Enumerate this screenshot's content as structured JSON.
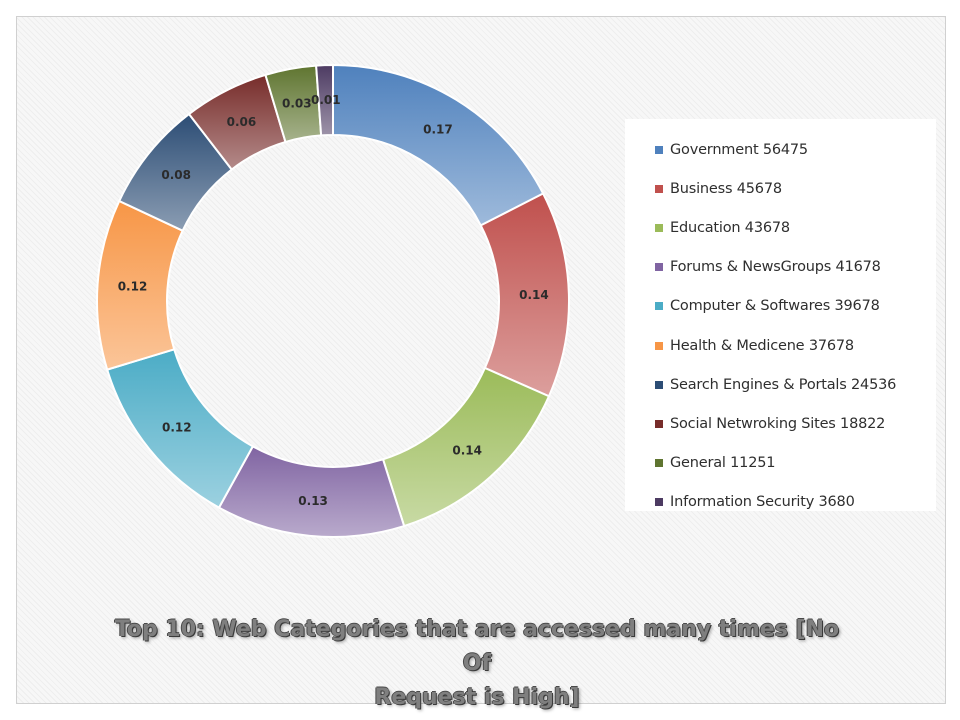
{
  "chart_data": {
    "type": "pie",
    "donut": true,
    "title_line1": "Top 10: Web Categories that are accessed many times [No Of",
    "title_line2": "Request is High]",
    "legend_position": "right",
    "slices": [
      {
        "name": "Government 56475",
        "value": 56475,
        "label": "0.17",
        "color": "#4f81bd"
      },
      {
        "name": "Business 45678",
        "value": 45678,
        "label": "0.14",
        "color": "#c0504d"
      },
      {
        "name": "Education 43678",
        "value": 43678,
        "label": "0.14",
        "color": "#9bbb59"
      },
      {
        "name": "Forums & NewsGroups 41678",
        "value": 41678,
        "label": "0.13",
        "color": "#8064a2"
      },
      {
        "name": "Computer & Softwares 39678",
        "value": 39678,
        "label": "0.12",
        "color": "#4bacc6"
      },
      {
        "name": "Health & Medicene 37678",
        "value": 37678,
        "label": "0.12",
        "color": "#f79646"
      },
      {
        "name": "Search Engines & Portals 24536",
        "value": 24536,
        "label": "0.08",
        "color": "#2c4d75"
      },
      {
        "name": "Social Netwroking Sites 18822",
        "value": 18822,
        "label": "0.06",
        "color": "#772c2a"
      },
      {
        "name": "General 11251",
        "value": 11251,
        "label": "0.03",
        "color": "#5f7530"
      },
      {
        "name": "Information Security 3680",
        "value": 3680,
        "label": "0.01",
        "color": "#4d3b62"
      }
    ]
  }
}
